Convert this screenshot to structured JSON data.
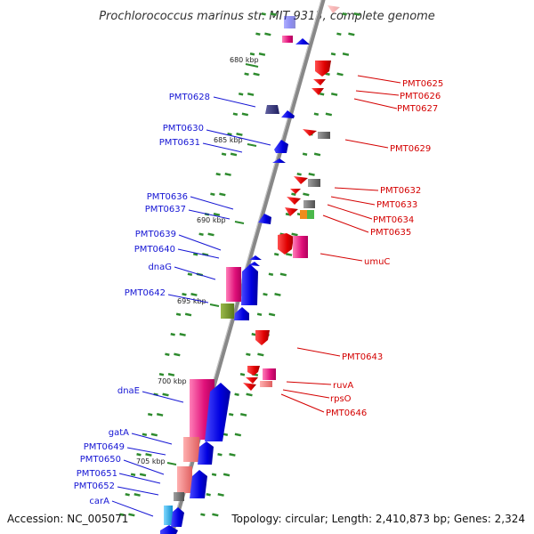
{
  "title": "Prochlorococcus marinus str. MIT 9313, complete genome",
  "accession": "Accession: NC_005071",
  "summary": "Topology: circular; Length: 2,410,873 bp; Genes: 2,324",
  "colors": {
    "backbone": "#888888",
    "left_label": "#1515d4",
    "right_label": "#d40000",
    "tick": "#2e8b2e"
  },
  "kbp_ticks": [
    {
      "label": "680 kbp"
    },
    {
      "label": "685 kbp"
    },
    {
      "label": "690 kbp"
    },
    {
      "label": "695 kbp"
    },
    {
      "label": "700 kbp"
    },
    {
      "label": "705 kbp"
    }
  ],
  "left_labels": [
    {
      "text": "PMT0628"
    },
    {
      "text": "PMT0630"
    },
    {
      "text": "PMT0631"
    },
    {
      "text": "PMT0636"
    },
    {
      "text": "PMT0637"
    },
    {
      "text": "PMT0639"
    },
    {
      "text": "PMT0640"
    },
    {
      "text": "dnaG"
    },
    {
      "text": "PMT0642"
    },
    {
      "text": "dnaE"
    },
    {
      "text": "gatA"
    },
    {
      "text": "PMT0649"
    },
    {
      "text": "PMT0650"
    },
    {
      "text": "PMT0651"
    },
    {
      "text": "PMT0652"
    },
    {
      "text": "carA"
    }
  ],
  "right_labels": [
    {
      "text": "PMT0625"
    },
    {
      "text": "PMT0626"
    },
    {
      "text": "PMT0627"
    },
    {
      "text": "PMT0629"
    },
    {
      "text": "PMT0632"
    },
    {
      "text": "PMT0633"
    },
    {
      "text": "PMT0634"
    },
    {
      "text": "PMT0635"
    },
    {
      "text": "umuC"
    },
    {
      "text": "PMT0643"
    },
    {
      "text": "ruvA"
    },
    {
      "text": "rpsO"
    },
    {
      "text": "PMT0646"
    }
  ]
}
